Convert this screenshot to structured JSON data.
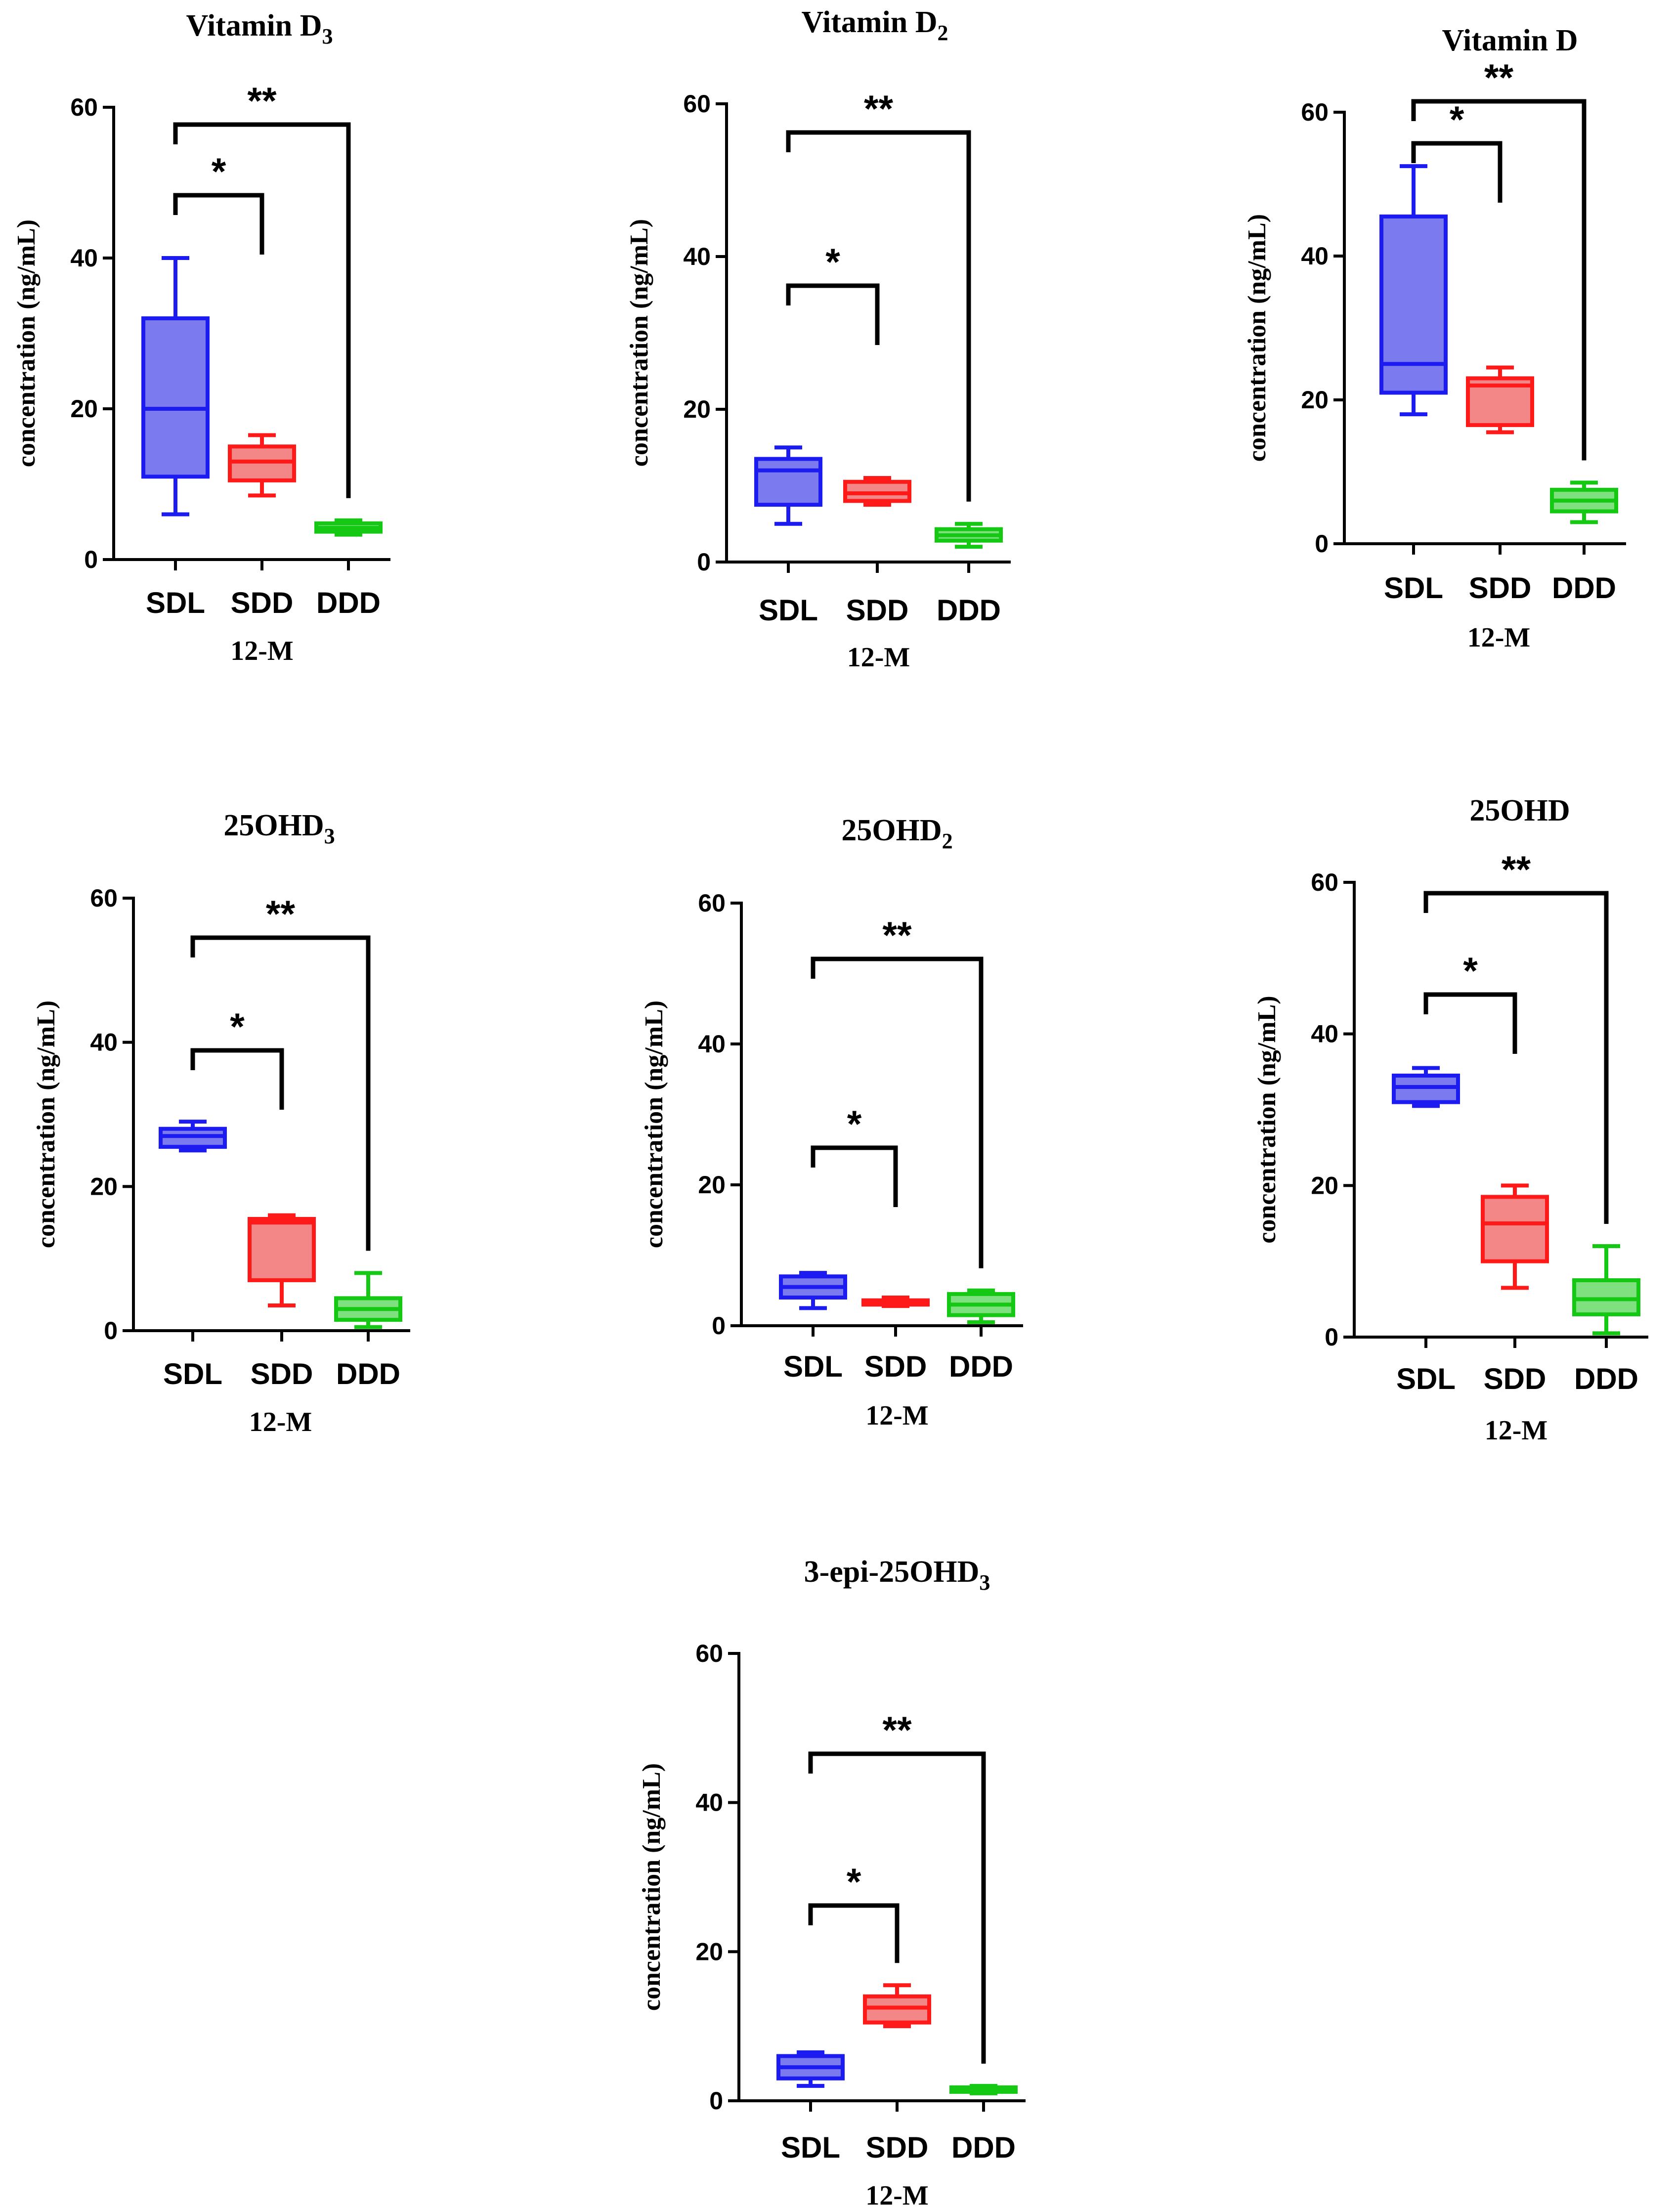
{
  "colors": {
    "SDL": {
      "stroke": "#1c1cf0",
      "fill": "#7b7bef"
    },
    "SDD": {
      "stroke": "#ff1a1a",
      "fill": "#f38686"
    },
    "DDD": {
      "stroke": "#14c814",
      "fill": "#7fe07f"
    },
    "axis": "#000000"
  },
  "chart_data": [
    {
      "type": "box",
      "title": "Vitamin D",
      "title_subscript": "3",
      "ylabel": "concentration (ng/mL)",
      "xlabel": "12-M",
      "categories": [
        "SDL",
        "SDD",
        "DDD"
      ],
      "ylim": [
        0,
        60
      ],
      "yticks": [
        0,
        20,
        40,
        60
      ],
      "boxes": [
        {
          "min": 6,
          "q1": 11,
          "median": 20,
          "q3": 32,
          "max": 40
        },
        {
          "min": 8.5,
          "q1": 10.5,
          "median": 13,
          "q3": 15,
          "max": 16.5
        },
        {
          "min": 3.3,
          "q1": 3.7,
          "median": 4.2,
          "q3": 4.8,
          "max": 5.2
        }
      ],
      "brackets": [
        {
          "from": "SDL",
          "to": "SDD",
          "label": "*"
        },
        {
          "from": "SDL",
          "to": "DDD",
          "label": "**"
        }
      ]
    },
    {
      "type": "box",
      "title": "Vitamin D",
      "title_subscript": "2",
      "ylabel": "concentration (ng/mL)",
      "xlabel": "12-M",
      "categories": [
        "SDL",
        "SDD",
        "DDD"
      ],
      "ylim": [
        0,
        60
      ],
      "yticks": [
        0,
        20,
        40,
        60
      ],
      "boxes": [
        {
          "min": 5,
          "q1": 7.5,
          "median": 12,
          "q3": 13.5,
          "max": 15
        },
        {
          "min": 7.5,
          "q1": 8,
          "median": 9,
          "q3": 10.5,
          "max": 11
        },
        {
          "min": 2,
          "q1": 2.8,
          "median": 3.5,
          "q3": 4.3,
          "max": 5
        }
      ],
      "brackets": [
        {
          "from": "SDL",
          "to": "SDD",
          "label": "*"
        },
        {
          "from": "SDL",
          "to": "DDD",
          "label": "**"
        }
      ]
    },
    {
      "type": "box",
      "title": "Vitamin D",
      "title_subscript": "",
      "ylabel": "concentration (ng/mL)",
      "xlabel": "12-M",
      "categories": [
        "SDL",
        "SDD",
        "DDD"
      ],
      "ylim": [
        0,
        60
      ],
      "yticks": [
        0,
        20,
        40,
        60
      ],
      "boxes": [
        {
          "min": 18,
          "q1": 21,
          "median": 25,
          "q3": 45.5,
          "max": 52.5
        },
        {
          "min": 15.5,
          "q1": 16.5,
          "median": 22,
          "q3": 23,
          "max": 24.5
        },
        {
          "min": 3,
          "q1": 4.5,
          "median": 6,
          "q3": 7.5,
          "max": 8.5
        }
      ],
      "brackets": [
        {
          "from": "SDL",
          "to": "SDD",
          "label": "*"
        },
        {
          "from": "SDL",
          "to": "DDD",
          "label": "**"
        }
      ]
    },
    {
      "type": "box",
      "title": "25OHD",
      "title_subscript": "3",
      "ylabel": "concentration (ng/mL)",
      "xlabel": "12-M",
      "categories": [
        "SDL",
        "SDD",
        "DDD"
      ],
      "ylim": [
        0,
        60
      ],
      "yticks": [
        0,
        20,
        40,
        60
      ],
      "boxes": [
        {
          "min": 25,
          "q1": 25.5,
          "median": 27,
          "q3": 28,
          "max": 29
        },
        {
          "min": 3.5,
          "q1": 7,
          "median": 15,
          "q3": 15.5,
          "max": 16
        },
        {
          "min": 0.5,
          "q1": 1.5,
          "median": 3,
          "q3": 4.5,
          "max": 8
        }
      ],
      "brackets": [
        {
          "from": "SDL",
          "to": "SDD",
          "label": "*"
        },
        {
          "from": "SDL",
          "to": "DDD",
          "label": "**"
        }
      ]
    },
    {
      "type": "box",
      "title": "25OHD",
      "title_subscript": "2",
      "ylabel": "concentration (ng/mL)",
      "xlabel": "12-M",
      "categories": [
        "SDL",
        "SDD",
        "DDD"
      ],
      "ylim": [
        0,
        60
      ],
      "yticks": [
        0,
        20,
        40,
        60
      ],
      "boxes": [
        {
          "min": 2.5,
          "q1": 4,
          "median": 5.5,
          "q3": 7,
          "max": 7.5
        },
        {
          "min": 2.8,
          "q1": 3,
          "median": 3.3,
          "q3": 3.6,
          "max": 4
        },
        {
          "min": 0.5,
          "q1": 1.5,
          "median": 3,
          "q3": 4.5,
          "max": 5
        }
      ],
      "brackets": [
        {
          "from": "SDL",
          "to": "SDD",
          "label": "*"
        },
        {
          "from": "SDL",
          "to": "DDD",
          "label": "**"
        }
      ]
    },
    {
      "type": "box",
      "title": "25OHD",
      "title_subscript": "",
      "ylabel": "concentration (ng/mL)",
      "xlabel": "12-M",
      "categories": [
        "SDL",
        "SDD",
        "DDD"
      ],
      "ylim": [
        0,
        60
      ],
      "yticks": [
        0,
        20,
        40,
        60
      ],
      "boxes": [
        {
          "min": 30.5,
          "q1": 31,
          "median": 33,
          "q3": 34.5,
          "max": 35.5
        },
        {
          "min": 6.5,
          "q1": 10,
          "median": 15,
          "q3": 18.5,
          "max": 20
        },
        {
          "min": 0.5,
          "q1": 3,
          "median": 5,
          "q3": 7.5,
          "max": 12
        }
      ],
      "brackets": [
        {
          "from": "SDL",
          "to": "SDD",
          "label": "*"
        },
        {
          "from": "SDL",
          "to": "DDD",
          "label": "**"
        }
      ]
    },
    {
      "type": "box",
      "title": "3-epi-25OHD",
      "title_subscript": "3",
      "ylabel": "concentration (ng/mL)",
      "xlabel": "12-M",
      "categories": [
        "SDL",
        "SDD",
        "DDD"
      ],
      "ylim": [
        0,
        60
      ],
      "yticks": [
        0,
        20,
        40,
        60
      ],
      "boxes": [
        {
          "min": 2,
          "q1": 3,
          "median": 4.5,
          "q3": 6,
          "max": 6.5
        },
        {
          "min": 10,
          "q1": 10.5,
          "median": 12.5,
          "q3": 14,
          "max": 15.5
        },
        {
          "min": 1,
          "q1": 1.2,
          "median": 1.5,
          "q3": 1.8,
          "max": 2
        }
      ],
      "brackets": [
        {
          "from": "SDL",
          "to": "SDD",
          "label": "*"
        },
        {
          "from": "SDL",
          "to": "DDD",
          "label": "**"
        }
      ]
    }
  ]
}
